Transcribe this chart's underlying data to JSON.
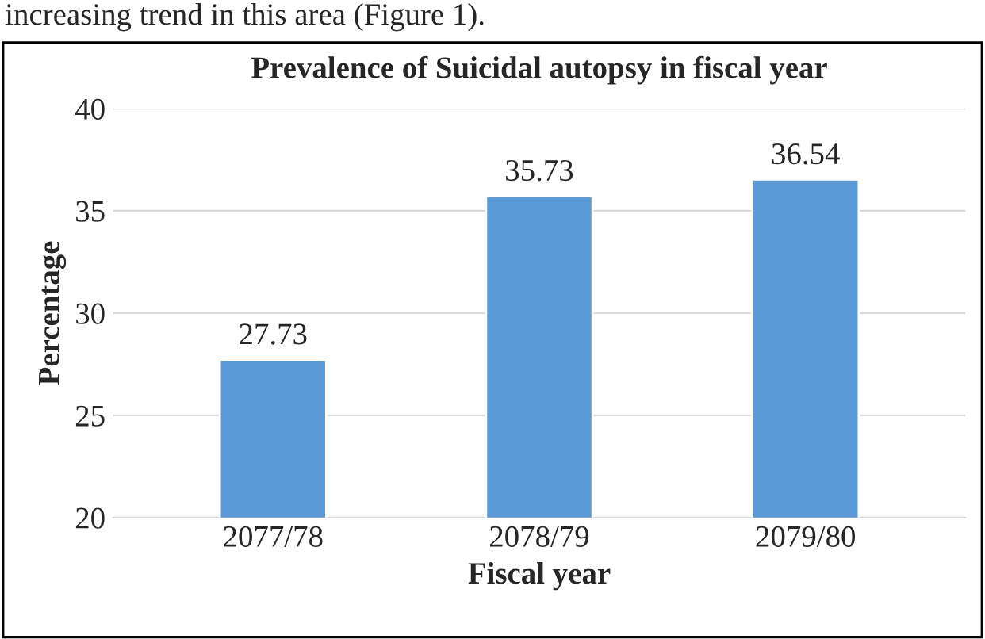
{
  "chart_data": {
    "type": "bar",
    "title": "Prevalence of Suicidal autopsy in fiscal year",
    "xlabel": "Fiscal year",
    "ylabel": "Percentage",
    "categories": [
      "2077/78",
      "2078/79",
      "2079/80"
    ],
    "values": [
      27.73,
      35.73,
      36.54
    ],
    "color": "#5b9bd5",
    "data_labels": true,
    "ylim": [
      20,
      40
    ],
    "yticks": [
      20,
      25,
      30,
      35,
      40
    ],
    "grid": "y",
    "annotations": [
      "increasing trend in this area (Figure 1)."
    ]
  }
}
